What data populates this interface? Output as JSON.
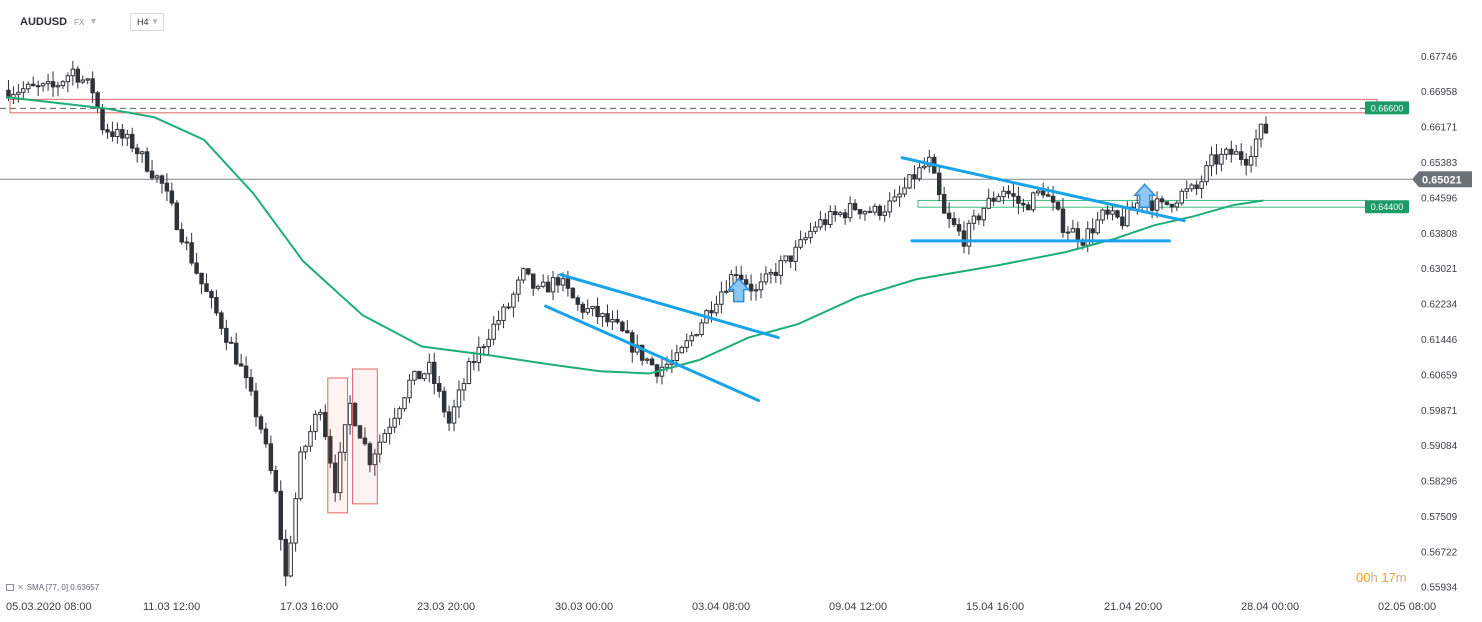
{
  "header": {
    "symbol": "AUDUSD",
    "market": "FX",
    "timeframe": "H4"
  },
  "indicator_legend": {
    "label": "SMA [77, 0] 0.63657"
  },
  "timer": {
    "hours": "00",
    "hours_unit": "h",
    "minutes": "17",
    "minutes_unit": "m"
  },
  "colors": {
    "candle": "#2f3337",
    "sma": "#1fae75",
    "trendline": "#1aa3e8",
    "resistance_zone": "#e06666",
    "support_zone": "#3fbf85",
    "price_badge": "#1a9b67",
    "current_price_badge": "#6b7177"
  },
  "chart_data": {
    "type": "candlestick",
    "symbol": "AUDUSD",
    "timeframe": "H4",
    "ylim": [
      0.5575,
      0.6812
    ],
    "y_ticks": [
      "0.67746",
      "0.66958",
      "0.66171",
      "0.65383",
      "0.64596",
      "0.63808",
      "0.63021",
      "0.62234",
      "0.61446",
      "0.60659",
      "0.59871",
      "0.59084",
      "0.58296",
      "0.57509",
      "0.56722",
      "0.55934"
    ],
    "x_ticks": [
      "05.03.2020  08:00",
      "11.03  12:00",
      "17.03  16:00",
      "23.03  20:00",
      "30.03  00:00",
      "03.04  08:00",
      "09.04  12:00",
      "15.04  16:00",
      "21.04  20:00",
      "28.04  00:00",
      "02.05  08:00"
    ],
    "current_price": "0.65021",
    "levels": [
      {
        "label": "0.66600",
        "value": 0.666,
        "style": "dashed",
        "zone": [
          0.665,
          0.668
        ]
      },
      {
        "label": "0.64400",
        "value": 0.644,
        "style": "zone",
        "zone": [
          0.644,
          0.6455
        ]
      }
    ],
    "path_points": [
      [
        0,
        0.67
      ],
      [
        10,
        0.6705
      ],
      [
        14,
        0.6745
      ],
      [
        18,
        0.67
      ],
      [
        20,
        0.662
      ],
      [
        26,
        0.658
      ],
      [
        32,
        0.649
      ],
      [
        36,
        0.638
      ],
      [
        40,
        0.627
      ],
      [
        44,
        0.618
      ],
      [
        48,
        0.608
      ],
      [
        52,
        0.595
      ],
      [
        55,
        0.58
      ],
      [
        57,
        0.5615
      ],
      [
        60,
        0.588
      ],
      [
        64,
        0.6
      ],
      [
        67,
        0.582
      ],
      [
        70,
        0.6
      ],
      [
        74,
        0.588
      ],
      [
        78,
        0.596
      ],
      [
        82,
        0.605
      ],
      [
        86,
        0.608
      ],
      [
        90,
        0.596
      ],
      [
        94,
        0.608
      ],
      [
        98,
        0.616
      ],
      [
        102,
        0.622
      ],
      [
        105,
        0.629
      ],
      [
        108,
        0.625
      ],
      [
        112,
        0.628
      ],
      [
        116,
        0.622
      ],
      [
        120,
        0.62
      ],
      [
        124,
        0.617
      ],
      [
        128,
        0.612
      ],
      [
        132,
        0.608
      ],
      [
        136,
        0.61
      ],
      [
        140,
        0.617
      ],
      [
        144,
        0.624
      ],
      [
        148,
        0.63
      ],
      [
        152,
        0.625
      ],
      [
        156,
        0.63
      ],
      [
        160,
        0.634
      ],
      [
        164,
        0.64
      ],
      [
        168,
        0.642
      ],
      [
        172,
        0.644
      ],
      [
        176,
        0.643
      ],
      [
        180,
        0.645
      ],
      [
        184,
        0.651
      ],
      [
        187,
        0.654
      ],
      [
        190,
        0.642
      ],
      [
        194,
        0.637
      ],
      [
        198,
        0.644
      ],
      [
        202,
        0.648
      ],
      [
        206,
        0.644
      ],
      [
        210,
        0.648
      ],
      [
        214,
        0.64
      ],
      [
        218,
        0.637
      ],
      [
        222,
        0.642
      ],
      [
        226,
        0.641
      ],
      [
        230,
        0.646
      ],
      [
        234,
        0.644
      ],
      [
        238,
        0.647
      ],
      [
        241,
        0.648
      ],
      [
        244,
        0.654
      ],
      [
        248,
        0.656
      ],
      [
        251,
        0.655
      ],
      [
        254,
        0.661
      ]
    ],
    "sma": {
      "name": "SMA [77, 0]",
      "points": [
        [
          0,
          0.6685
        ],
        [
          20,
          0.666
        ],
        [
          30,
          0.664
        ],
        [
          40,
          0.659
        ],
        [
          50,
          0.647
        ],
        [
          60,
          0.632
        ],
        [
          72,
          0.62
        ],
        [
          84,
          0.613
        ],
        [
          98,
          0.611
        ],
        [
          110,
          0.609
        ],
        [
          120,
          0.6075
        ],
        [
          130,
          0.607
        ],
        [
          140,
          0.61
        ],
        [
          150,
          0.615
        ],
        [
          160,
          0.618
        ],
        [
          172,
          0.624
        ],
        [
          184,
          0.628
        ],
        [
          200,
          0.631
        ],
        [
          214,
          0.634
        ],
        [
          224,
          0.637
        ],
        [
          232,
          0.64
        ],
        [
          240,
          0.642
        ],
        [
          248,
          0.6445
        ],
        [
          254,
          0.6455
        ]
      ]
    },
    "trendlines": [
      {
        "from": [
          112,
          0.629
        ],
        "to": [
          156,
          0.615
        ]
      },
      {
        "from": [
          109,
          0.622
        ],
        "to": [
          152,
          0.601
        ]
      },
      {
        "from": [
          181,
          0.655
        ],
        "to": [
          238,
          0.641
        ]
      },
      {
        "from": [
          183,
          0.6365
        ],
        "to": [
          235,
          0.6365
        ]
      }
    ],
    "arrows": [
      [
        148,
        0.625
      ],
      [
        230,
        0.646
      ]
    ],
    "rect_annotations": [
      {
        "from": [
          65,
          0.576
        ],
        "to": [
          69,
          0.606
        ]
      },
      {
        "from": [
          70,
          0.578
        ],
        "to": [
          75,
          0.608
        ]
      }
    ]
  }
}
